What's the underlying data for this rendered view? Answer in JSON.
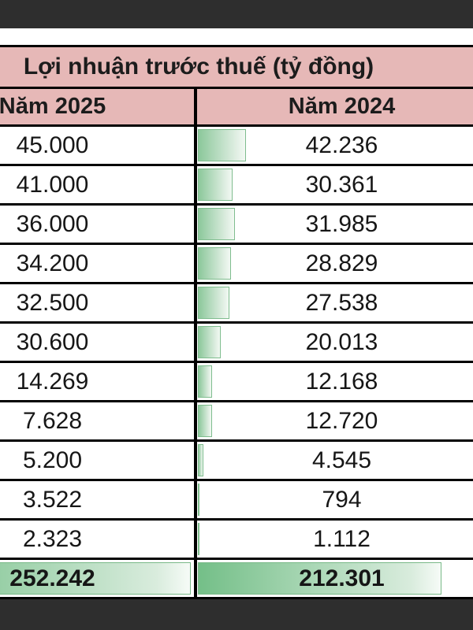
{
  "frame": {
    "letterbox_color": "#2e2e2e"
  },
  "table": {
    "title": "Lợi nhuận trước thuế (tỷ đồng)",
    "header": {
      "col_2025": "Năm 2025",
      "col_2024": "Năm 2024"
    },
    "rows": [
      {
        "v2025": "45.000",
        "v2024": "42.236"
      },
      {
        "v2025": "41.000",
        "v2024": "30.361"
      },
      {
        "v2025": "36.000",
        "v2024": "31.985"
      },
      {
        "v2025": "34.200",
        "v2024": "28.829"
      },
      {
        "v2025": "32.500",
        "v2024": "27.538"
      },
      {
        "v2025": "30.600",
        "v2024": "20.013"
      },
      {
        "v2025": "14.269",
        "v2024": "12.168"
      },
      {
        "v2025": "7.628",
        "v2024": "12.720"
      },
      {
        "v2025": "5.200",
        "v2024": "4.545"
      },
      {
        "v2025": "3.522",
        "v2024": "794"
      },
      {
        "v2025": "2.323",
        "v2024": "1.112"
      }
    ],
    "total": {
      "v2025": "252.242",
      "v2024": "212.301"
    },
    "data_bars": {
      "scale_max": 252242,
      "fill_start": "#8cc89b",
      "fill_end": "#f2f9f3",
      "border": "#7fbd8e",
      "total_fill_start": "#74bf88"
    },
    "colors": {
      "header_bg": "#e6b8b7",
      "grid_border": "#000000",
      "text": "#161616"
    }
  }
}
